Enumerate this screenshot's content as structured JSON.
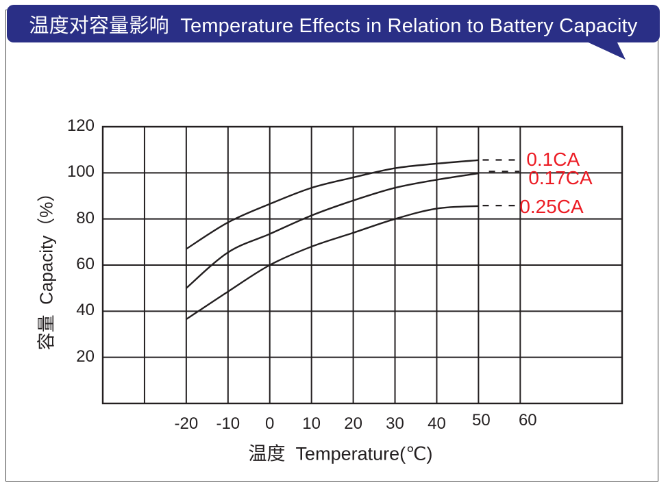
{
  "header": {
    "title": "温度对容量影响  Temperature Effects in Relation to Battery Capacity",
    "background_color": "#2a2f86",
    "text_color": "#ffffff"
  },
  "chart_data": {
    "type": "line",
    "title": "温度对容量影响 Temperature Effects in Relation to Battery Capacity",
    "xlabel": "温度  Temperature(℃)",
    "ylabel": "容量  Capacity（%）",
    "xlim": [
      -40,
      84.4
    ],
    "ylim": [
      0,
      120
    ],
    "grid": true,
    "xticks": [
      "-20",
      "-10",
      "0",
      "10",
      "20",
      "30",
      "40",
      "50",
      "60"
    ],
    "xtick_values": [
      -20,
      -10,
      0,
      10,
      20,
      30,
      40,
      50,
      60
    ],
    "yticks": [
      "120",
      "100",
      "80",
      "60",
      "40",
      "20"
    ],
    "ytick_values": [
      120,
      100,
      80,
      60,
      40,
      20
    ],
    "x_gridline_values": [
      -40,
      -30,
      -20,
      -10,
      0,
      10,
      20,
      30,
      40,
      50,
      60
    ],
    "y_gridline_values": [
      0,
      20,
      40,
      60,
      80,
      100,
      120
    ],
    "axis_color": "#231f20",
    "line_color": "#231f20",
    "series_label_color": "#ec1c24",
    "legend_position": "inline-right",
    "series": [
      {
        "name": "0.1CA",
        "label": "0.1CA",
        "x": [
          -20,
          -10,
          0,
          10,
          20,
          30,
          40,
          50
        ],
        "y": [
          67,
          78.5,
          86.5,
          93.5,
          98,
          102,
          104,
          105.5
        ],
        "dash_x": [
          51,
          59.8
        ],
        "dash_y": 105.6
      },
      {
        "name": "0.17CA",
        "label": "0.17CA",
        "x": [
          -20,
          -10,
          0,
          10,
          20,
          30,
          40,
          50
        ],
        "y": [
          50,
          65.5,
          73.5,
          81.5,
          88,
          93.5,
          97,
          99.8
        ],
        "dash_x": [
          52.5,
          59.8
        ],
        "dash_y": 100.6
      },
      {
        "name": "0.25CA",
        "label": "0.25CA",
        "x": [
          -20,
          -10,
          0,
          10,
          20,
          30,
          40,
          50
        ],
        "y": [
          36.5,
          48.5,
          60,
          68,
          74,
          80,
          84.5,
          85.6
        ],
        "dash_x": [
          51,
          59.8
        ],
        "dash_y": 85.8
      }
    ]
  }
}
